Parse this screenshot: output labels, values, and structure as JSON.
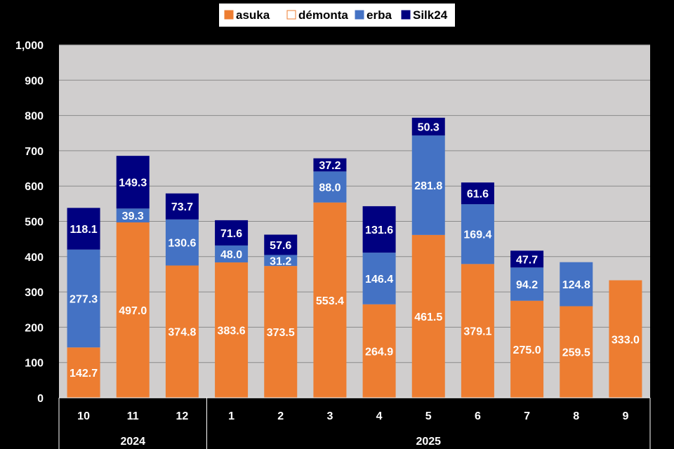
{
  "chart_data": {
    "type": "bar",
    "stacked": true,
    "title": "",
    "xlabel": "",
    "ylabel": "",
    "ylim": [
      0,
      1000
    ],
    "yticks": [
      0,
      100,
      200,
      300,
      400,
      500,
      600,
      700,
      800,
      900,
      1000
    ],
    "ytick_labels": [
      "0",
      "100",
      "200",
      "300",
      "400",
      "500",
      "600",
      "700",
      "800",
      "900",
      "1,000"
    ],
    "categories": [
      "10",
      "11",
      "12",
      "1",
      "2",
      "3",
      "4",
      "5",
      "6",
      "7",
      "8",
      "9"
    ],
    "year_groups": [
      {
        "label": "2024",
        "start": 0,
        "count": 3
      },
      {
        "label": "2025",
        "start": 3,
        "count": 9
      }
    ],
    "series": [
      {
        "name": "asuka",
        "color": "#ed7d31",
        "border": "#ed7d31",
        "values": [
          142.7,
          497.0,
          374.8,
          383.6,
          373.5,
          553.4,
          264.9,
          461.5,
          379.1,
          275.0,
          259.5,
          333.0
        ],
        "labels": [
          "142.7",
          "497.0",
          "374.8",
          "383.6",
          "373.5",
          "553.4",
          "264.9",
          "461.5",
          "379.1",
          "275.0",
          "259.5",
          "333.0"
        ]
      },
      {
        "name": "démonta",
        "color": "#ffffff",
        "border": "#ed7d31",
        "values": [
          0,
          0,
          0,
          0,
          0,
          0,
          0,
          0,
          0,
          0,
          0,
          0
        ],
        "labels": [
          null,
          null,
          null,
          null,
          null,
          null,
          null,
          null,
          null,
          null,
          null,
          null
        ]
      },
      {
        "name": "erba",
        "color": "#4472c4",
        "border": "#4472c4",
        "values": [
          277.3,
          39.3,
          130.6,
          48.0,
          31.2,
          88.0,
          146.4,
          281.8,
          169.4,
          94.2,
          124.8,
          0
        ],
        "labels": [
          "277.3",
          "39.3",
          "130.6",
          "48.0",
          "31.2",
          "88.0",
          "146.4",
          "281.8",
          "169.4",
          "94.2",
          "124.8",
          null
        ]
      },
      {
        "name": "Silk24",
        "color": "#000080",
        "border": "#000080",
        "values": [
          118.1,
          149.3,
          73.7,
          71.6,
          57.6,
          37.2,
          131.6,
          50.3,
          61.6,
          47.7,
          0,
          0
        ],
        "labels": [
          "118.1",
          "149.3",
          "73.7",
          "71.6",
          "57.6",
          "37.2",
          "131.6",
          "50.3",
          "61.6",
          "47.7",
          null,
          null
        ]
      }
    ],
    "legend_position": "top",
    "grid": true,
    "plot_background": "#d0cece"
  }
}
